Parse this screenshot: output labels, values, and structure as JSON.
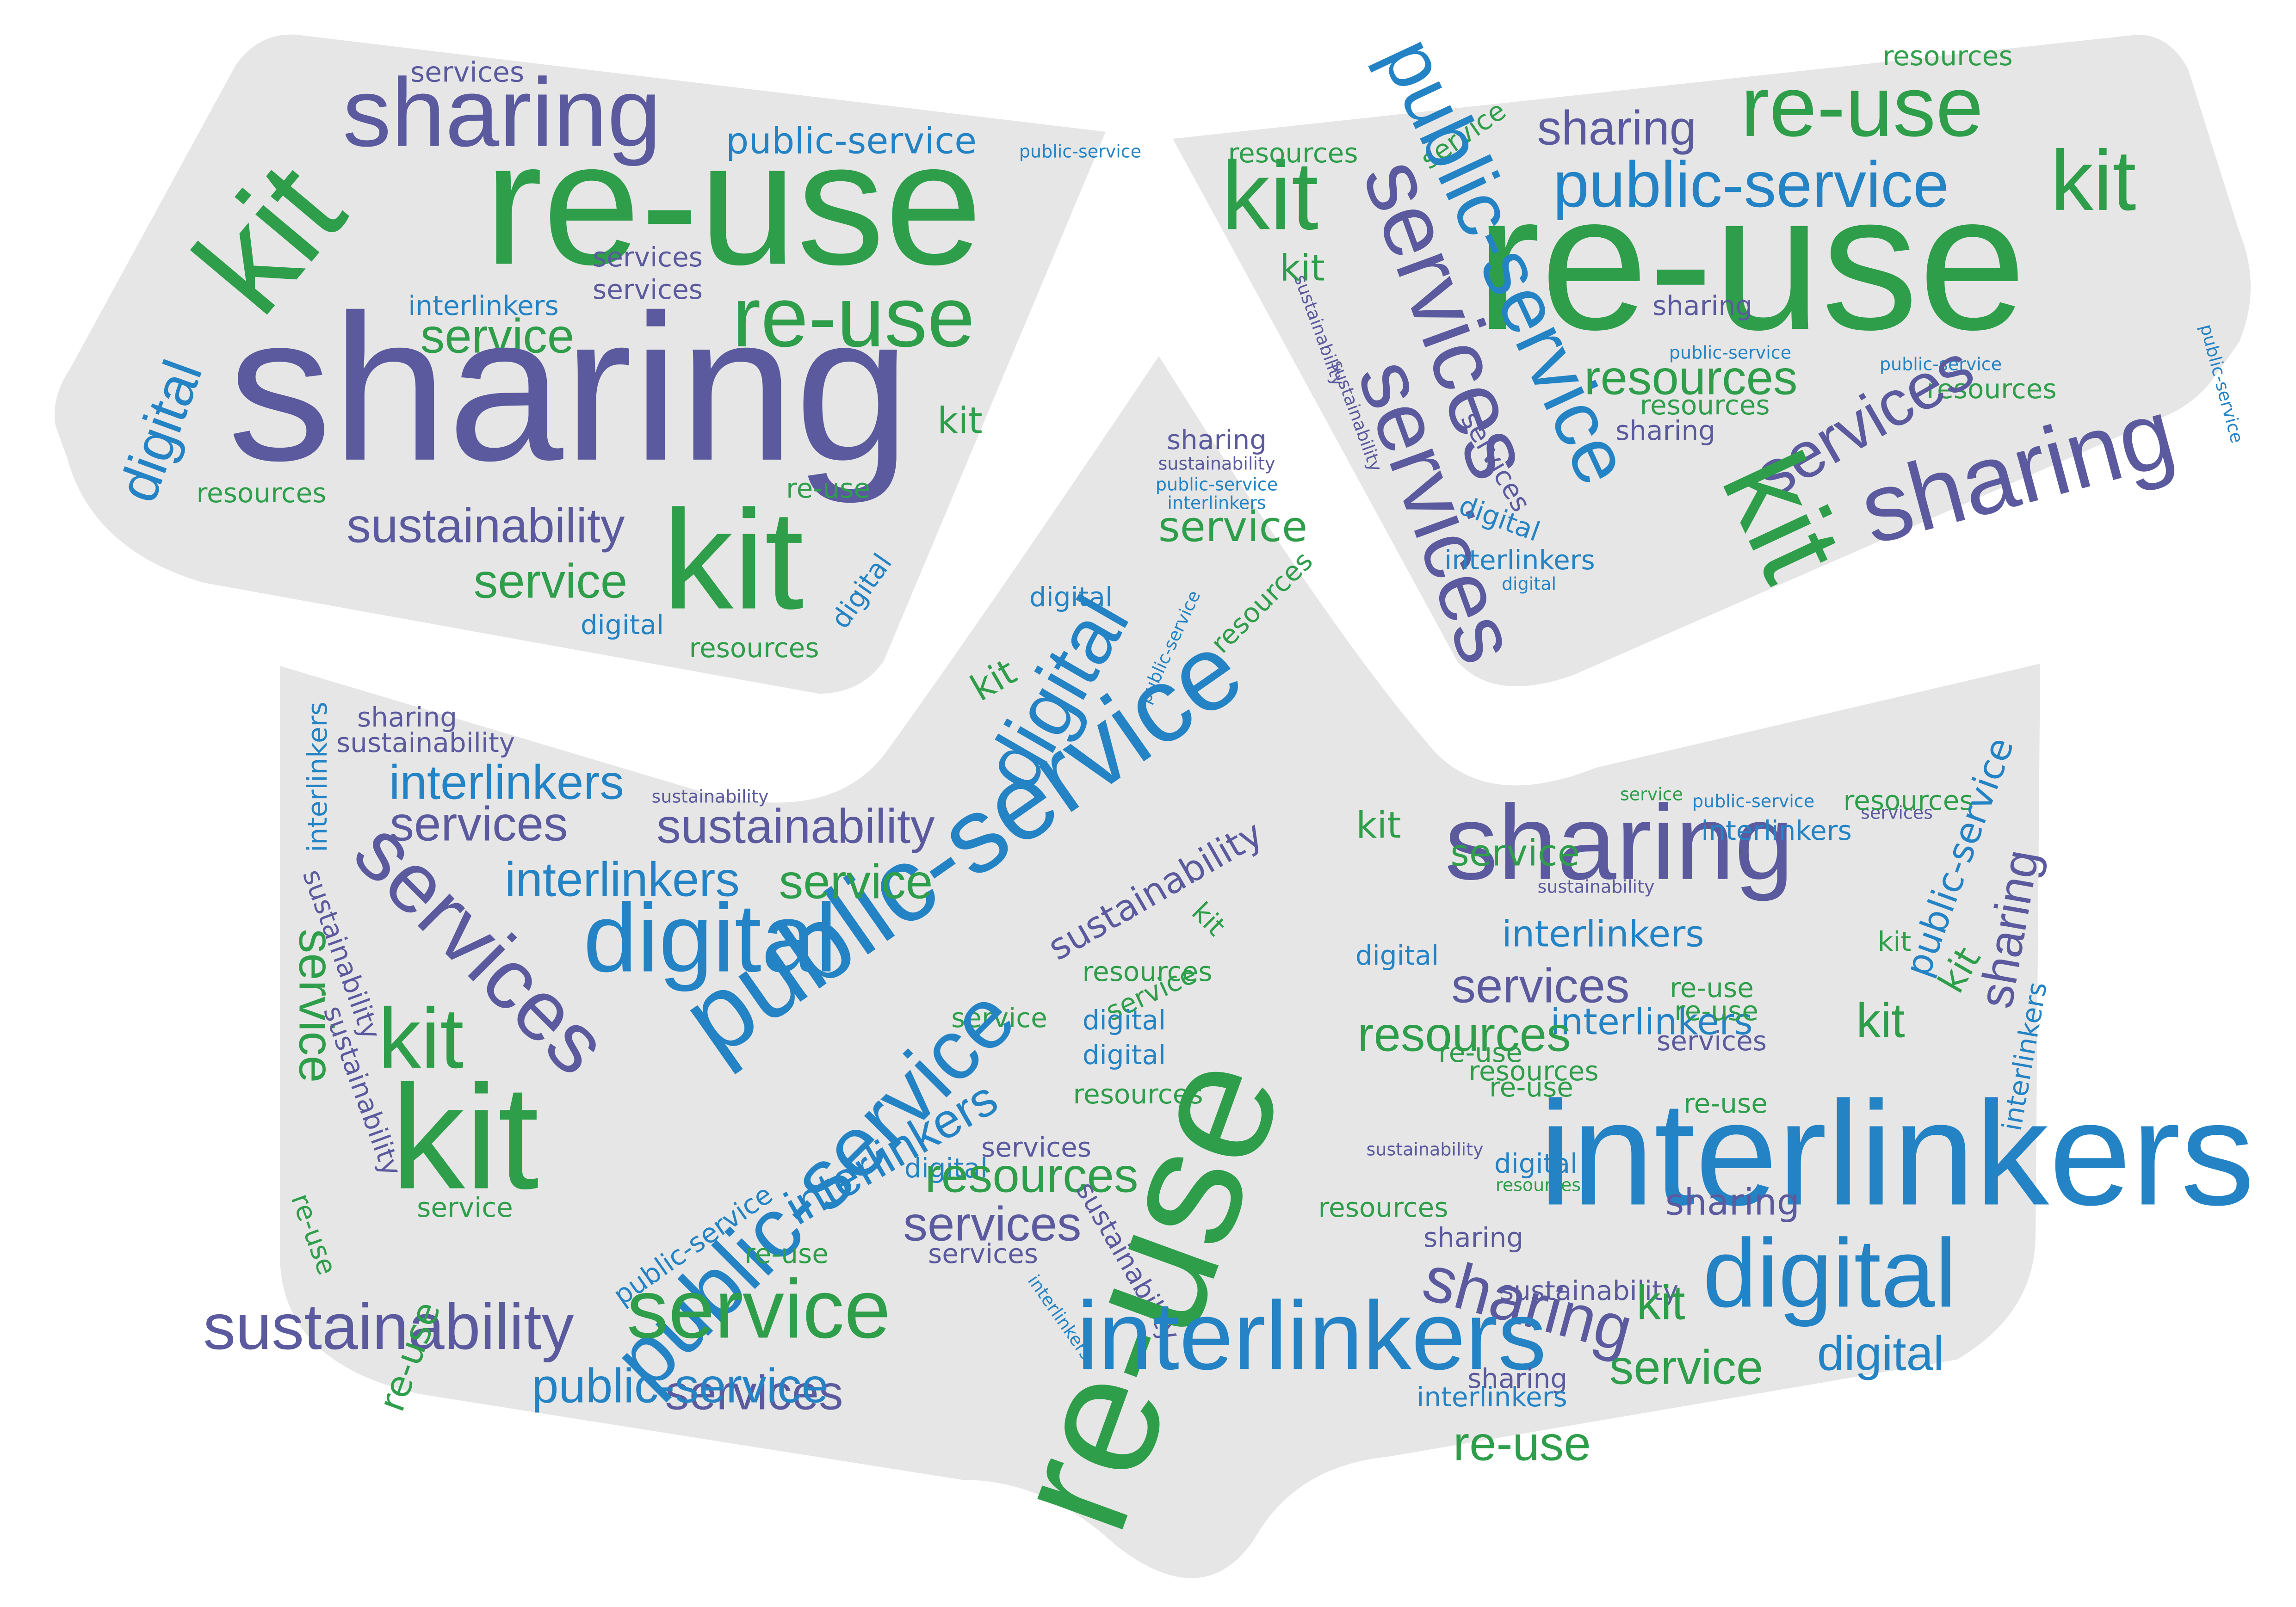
{
  "palette": {
    "green": "#2e9e4a",
    "purple": "#5b5a9e",
    "blue": "#2483c4",
    "panel": "#e6e6e6",
    "background": "#ffffff"
  },
  "panels": [
    {
      "name": "left-panel",
      "words": [
        {
          "t": "services",
          "c": "purple"
        },
        {
          "t": "sharing",
          "c": "purple"
        },
        {
          "t": "public-service",
          "c": "blue"
        },
        {
          "t": "public-service",
          "c": "blue"
        },
        {
          "t": "re-use",
          "c": "green"
        },
        {
          "t": "kit",
          "c": "green"
        },
        {
          "t": "services",
          "c": "purple"
        },
        {
          "t": "services",
          "c": "purple"
        },
        {
          "t": "interlinkers",
          "c": "blue"
        },
        {
          "t": "re-use",
          "c": "green"
        },
        {
          "t": "service",
          "c": "green"
        },
        {
          "t": "sharing",
          "c": "purple"
        },
        {
          "t": "digital",
          "c": "blue"
        },
        {
          "t": "kit",
          "c": "green"
        },
        {
          "t": "resources",
          "c": "green"
        },
        {
          "t": "re-use",
          "c": "green"
        },
        {
          "t": "sustainability",
          "c": "purple"
        },
        {
          "t": "kit",
          "c": "green"
        },
        {
          "t": "service",
          "c": "green"
        },
        {
          "t": "digital",
          "c": "blue"
        },
        {
          "t": "digital",
          "c": "blue"
        },
        {
          "t": "resources",
          "c": "green"
        }
      ]
    },
    {
      "name": "right-panel",
      "words": [
        {
          "t": "resources",
          "c": "green"
        },
        {
          "t": "re-use",
          "c": "green"
        },
        {
          "t": "sharing",
          "c": "purple"
        },
        {
          "t": "service",
          "c": "green"
        },
        {
          "t": "resources",
          "c": "green"
        },
        {
          "t": "public-service",
          "c": "blue"
        },
        {
          "t": "kit",
          "c": "green"
        },
        {
          "t": "kit",
          "c": "green"
        },
        {
          "t": "re-use",
          "c": "green"
        },
        {
          "t": "kit",
          "c": "green"
        },
        {
          "t": "public-service",
          "c": "blue"
        },
        {
          "t": "services",
          "c": "purple"
        },
        {
          "t": "sustainability",
          "c": "purple"
        },
        {
          "t": "sustainability",
          "c": "purple"
        },
        {
          "t": "sharing",
          "c": "purple"
        },
        {
          "t": "public-service",
          "c": "blue"
        },
        {
          "t": "public-service",
          "c": "blue"
        },
        {
          "t": "public-service",
          "c": "blue"
        },
        {
          "t": "resources",
          "c": "green"
        },
        {
          "t": "resources",
          "c": "green"
        },
        {
          "t": "resources",
          "c": "green"
        },
        {
          "t": "sharing",
          "c": "purple"
        },
        {
          "t": "services",
          "c": "purple"
        },
        {
          "t": "sharing",
          "c": "purple"
        },
        {
          "t": "kit",
          "c": "green"
        },
        {
          "t": "services",
          "c": "purple"
        },
        {
          "t": "services",
          "c": "purple"
        },
        {
          "t": "digital",
          "c": "blue"
        },
        {
          "t": "interlinkers",
          "c": "blue"
        },
        {
          "t": "digital",
          "c": "blue"
        }
      ]
    },
    {
      "name": "bottom-panel",
      "words": [
        {
          "t": "sharing",
          "c": "purple"
        },
        {
          "t": "sustainability",
          "c": "purple"
        },
        {
          "t": "public-service",
          "c": "blue"
        },
        {
          "t": "interlinkers",
          "c": "blue"
        },
        {
          "t": "service",
          "c": "green"
        },
        {
          "t": "resources",
          "c": "green"
        },
        {
          "t": "digital",
          "c": "blue"
        },
        {
          "t": "public-service",
          "c": "blue"
        },
        {
          "t": "digital",
          "c": "blue"
        },
        {
          "t": "kit",
          "c": "green"
        },
        {
          "t": "public-service",
          "c": "blue"
        },
        {
          "t": "interlinkers",
          "c": "blue"
        },
        {
          "t": "sharing",
          "c": "purple"
        },
        {
          "t": "sustainability",
          "c": "purple"
        },
        {
          "t": "interlinkers",
          "c": "blue"
        },
        {
          "t": "sustainability",
          "c": "purple"
        },
        {
          "t": "services",
          "c": "purple"
        },
        {
          "t": "sustainability",
          "c": "purple"
        },
        {
          "t": "interlinkers",
          "c": "blue"
        },
        {
          "t": "service",
          "c": "green"
        },
        {
          "t": "services",
          "c": "purple"
        },
        {
          "t": "digital",
          "c": "blue"
        },
        {
          "t": "sustainability",
          "c": "purple"
        },
        {
          "t": "kit",
          "c": "green"
        },
        {
          "t": "sharing",
          "c": "purple"
        },
        {
          "t": "kit",
          "c": "green"
        },
        {
          "t": "services",
          "c": "purple"
        },
        {
          "t": "service",
          "c": "green"
        },
        {
          "t": "public-service",
          "c": "blue"
        },
        {
          "t": "resources",
          "c": "green"
        },
        {
          "t": "public-service",
          "c": "blue"
        },
        {
          "t": "interlinkers",
          "c": "blue"
        },
        {
          "t": "sustainability",
          "c": "purple"
        },
        {
          "t": "interlinkers",
          "c": "blue"
        },
        {
          "t": "service",
          "c": "green"
        },
        {
          "t": "sustainability",
          "c": "purple"
        },
        {
          "t": "service",
          "c": "green"
        },
        {
          "t": "kit",
          "c": "green"
        },
        {
          "t": "kit",
          "c": "green"
        },
        {
          "t": "digital",
          "c": "blue"
        },
        {
          "t": "sharing",
          "c": "purple"
        },
        {
          "t": "services",
          "c": "purple"
        },
        {
          "t": "service",
          "c": "green"
        },
        {
          "t": "resources",
          "c": "green"
        },
        {
          "t": "digital",
          "c": "blue"
        },
        {
          "t": "interlinkers",
          "c": "blue"
        },
        {
          "t": "kit",
          "c": "green"
        },
        {
          "t": "interlinkers",
          "c": "blue"
        },
        {
          "t": "re-use",
          "c": "green"
        },
        {
          "t": "re-use",
          "c": "green"
        },
        {
          "t": "kit",
          "c": "green"
        },
        {
          "t": "resources",
          "c": "green"
        },
        {
          "t": "re-use",
          "c": "green"
        },
        {
          "t": "service",
          "c": "green"
        },
        {
          "t": "services",
          "c": "purple"
        },
        {
          "t": "resources",
          "c": "green"
        },
        {
          "t": "re-use",
          "c": "green"
        },
        {
          "t": "sustainability",
          "c": "purple"
        },
        {
          "t": "kit",
          "c": "green"
        },
        {
          "t": "digital",
          "c": "blue"
        },
        {
          "t": "resources",
          "c": "green"
        },
        {
          "t": "interlinkers",
          "c": "blue"
        },
        {
          "t": "digital",
          "c": "blue"
        },
        {
          "t": "re-use",
          "c": "green"
        },
        {
          "t": "sustainability",
          "c": "purple"
        },
        {
          "t": "digital",
          "c": "blue"
        },
        {
          "t": "public-service",
          "c": "blue"
        },
        {
          "t": "resources",
          "c": "green"
        },
        {
          "t": "resources",
          "c": "green"
        },
        {
          "t": "services",
          "c": "purple"
        },
        {
          "t": "interlinkers",
          "c": "blue"
        },
        {
          "t": "services",
          "c": "purple"
        },
        {
          "t": "sharing",
          "c": "purple"
        },
        {
          "t": "resources",
          "c": "green"
        },
        {
          "t": "service",
          "c": "green"
        },
        {
          "t": "public-service",
          "c": "blue"
        },
        {
          "t": "re-use",
          "c": "green"
        },
        {
          "t": "services",
          "c": "purple"
        },
        {
          "t": "sharing",
          "c": "purple"
        },
        {
          "t": "sustainability",
          "c": "purple"
        },
        {
          "t": "service",
          "c": "green"
        },
        {
          "t": "digital",
          "c": "blue"
        },
        {
          "t": "re-use",
          "c": "green"
        },
        {
          "t": "sharing",
          "c": "purple"
        },
        {
          "t": "sustainability",
          "c": "purple"
        },
        {
          "t": "kit",
          "c": "green"
        },
        {
          "t": "interlinkers",
          "c": "blue"
        },
        {
          "t": "re-use",
          "c": "green"
        },
        {
          "t": "interlinkers",
          "c": "blue"
        },
        {
          "t": "services",
          "c": "purple"
        },
        {
          "t": "sustainability",
          "c": "purple"
        },
        {
          "t": "re-use",
          "c": "green"
        },
        {
          "t": "service",
          "c": "green"
        },
        {
          "t": "digital",
          "c": "blue"
        },
        {
          "t": "public-service",
          "c": "blue"
        },
        {
          "t": "sharing",
          "c": "purple"
        },
        {
          "t": "interlinkers",
          "c": "blue"
        },
        {
          "t": "re-use",
          "c": "green"
        }
      ]
    }
  ]
}
